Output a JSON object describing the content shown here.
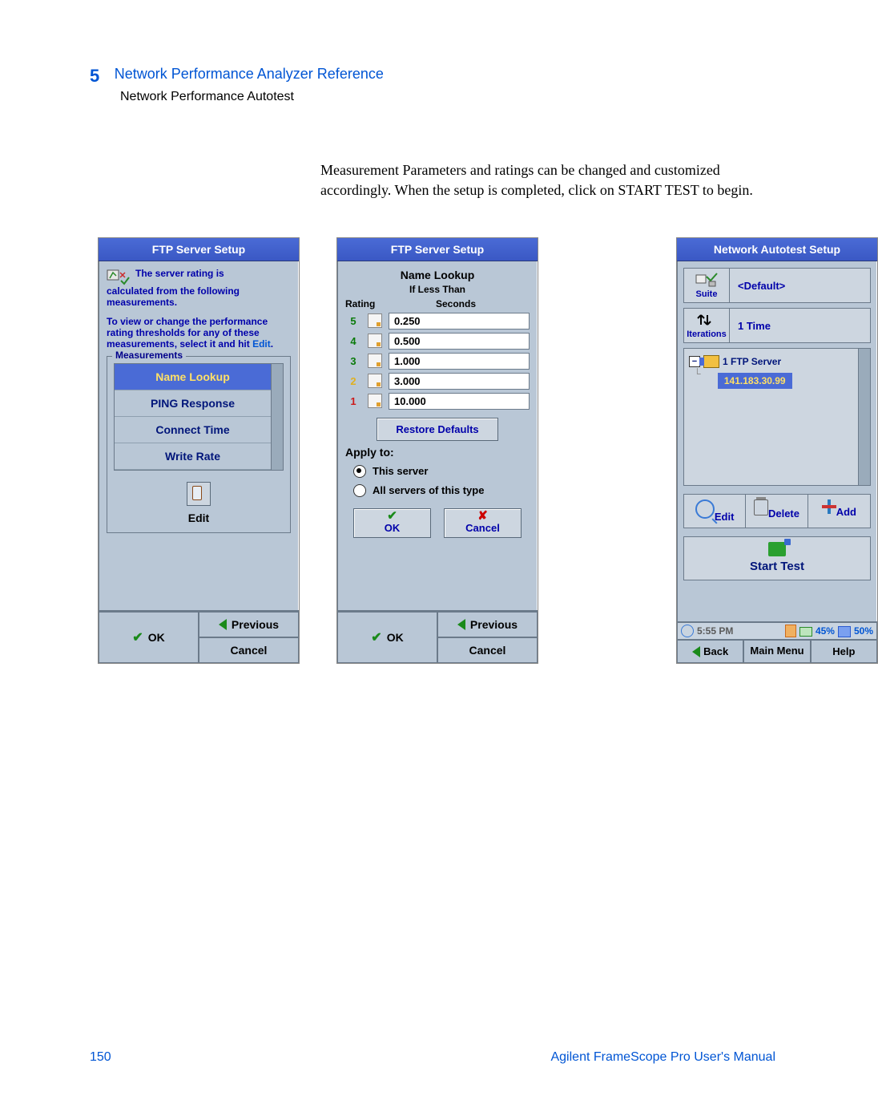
{
  "header": {
    "chapter_num": "5",
    "chapter_title": "Network Performance Analyzer Reference",
    "subsection": "Network Performance Autotest"
  },
  "body_paragraph": "Measurement Parameters and ratings can be changed and customized accordingly.  When the setup is completed, click on START TEST to begin.",
  "screen1": {
    "title": "FTP Server Setup",
    "info_line1": "The server rating is",
    "info_rest": "calculated from the following measurements.",
    "info_para2a": "To view or change the performance rating thresholds for any of these measurements, select it and hit ",
    "info_para2b": "Edit",
    "info_para2c": ".",
    "measurements_label": "Measurements",
    "measurements": [
      "Name Lookup",
      "PING Response",
      "Connect Time",
      "Write Rate"
    ],
    "edit_label": "Edit",
    "btn_previous": "Previous",
    "btn_ok": "OK",
    "btn_cancel": "Cancel"
  },
  "screen2": {
    "title": "FTP Server Setup",
    "heading": "Name Lookup",
    "subheading": "If Less Than",
    "col_rating": "Rating",
    "col_seconds": "Seconds",
    "rows": [
      {
        "rating": "5",
        "value": "0.250",
        "cls": "r5"
      },
      {
        "rating": "4",
        "value": "0.500",
        "cls": "r4"
      },
      {
        "rating": "3",
        "value": "1.000",
        "cls": "r3"
      },
      {
        "rating": "2",
        "value": "3.000",
        "cls": "r2"
      },
      {
        "rating": "1",
        "value": "10.000",
        "cls": "r1"
      }
    ],
    "restore": "Restore Defaults",
    "apply_to": "Apply to:",
    "radio_this": "This server",
    "radio_all": "All servers of this type",
    "ok": "OK",
    "cancel": "Cancel",
    "btn_previous": "Previous",
    "btn_ok": "OK",
    "btn_cancel": "Cancel"
  },
  "screen3": {
    "title": "Network Autotest Setup",
    "suite_label": "Suite",
    "suite_value": "<Default>",
    "iter_label": "Iterations",
    "iter_value": "1 Time",
    "tree_server": "1 FTP Server",
    "tree_ip": "141.183.30.99",
    "edit": "Edit",
    "delete": "Delete",
    "add": "Add",
    "start": "Start Test",
    "time": "5:55 PM",
    "pct1": "45%",
    "pct2": "50%",
    "back": "Back",
    "main_menu": "Main Menu",
    "help": "Help"
  },
  "footer": {
    "page_num": "150",
    "manual": "Agilent FrameScope Pro User's Manual"
  }
}
